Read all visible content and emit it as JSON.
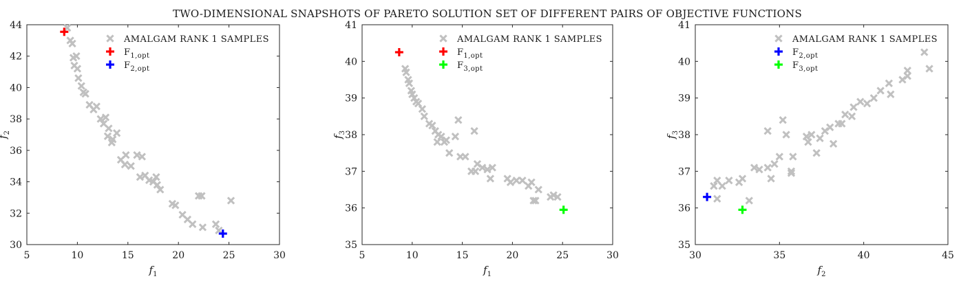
{
  "figure": {
    "title": "TWO-DIMENSIONAL SNAPSHOTS OF PARETO SOLUTION SET OF DIFFERENT PAIRS OF OBJECTIVE FUNCTIONS"
  },
  "colors": {
    "samples": "#c0c0c0",
    "f1_opt": "#ff0000",
    "f2_opt": "#0000ff",
    "f3_opt": "#00ff00",
    "axes": "#262626"
  },
  "chart_data": [
    {
      "type": "scatter",
      "xlabel": {
        "base": "f",
        "sub": "1"
      },
      "ylabel": {
        "base": "f",
        "sub": "2"
      },
      "xlim": [
        5,
        30
      ],
      "ylim": [
        30,
        44
      ],
      "xticks": [
        "5",
        "10",
        "15",
        "20",
        "25",
        "30"
      ],
      "yticks": [
        "30",
        "32",
        "34",
        "36",
        "38",
        "40",
        "42",
        "44"
      ],
      "legend_position": "top-right",
      "legend": [
        {
          "text": "AMALGAM RANK 1 SAMPLES",
          "sub": "",
          "marker": "x",
          "color": "#c0c0c0"
        },
        {
          "text": "F",
          "sub": "1,opt",
          "marker": "+",
          "color": "#ff0000"
        },
        {
          "text": "F",
          "sub": "2,opt",
          "marker": "+",
          "color": "#0000ff"
        }
      ],
      "series": [
        {
          "name": "AMALGAM RANK 1 SAMPLES",
          "marker": "x",
          "color": "#c0c0c0",
          "points": [
            [
              9.0,
              43.8
            ],
            [
              9.3,
              43.0
            ],
            [
              9.5,
              42.8
            ],
            [
              9.6,
              41.9
            ],
            [
              9.9,
              42.0
            ],
            [
              9.7,
              41.4
            ],
            [
              10.0,
              41.2
            ],
            [
              10.1,
              40.6
            ],
            [
              10.4,
              40.1
            ],
            [
              10.8,
              39.6
            ],
            [
              10.6,
              39.7
            ],
            [
              11.2,
              38.9
            ],
            [
              11.6,
              38.6
            ],
            [
              11.9,
              38.8
            ],
            [
              12.3,
              38.0
            ],
            [
              12.6,
              37.7
            ],
            [
              12.8,
              38.1
            ],
            [
              13.1,
              37.4
            ],
            [
              13.0,
              36.9
            ],
            [
              13.5,
              36.7
            ],
            [
              13.4,
              36.5
            ],
            [
              13.9,
              37.1
            ],
            [
              14.3,
              35.4
            ],
            [
              14.7,
              35.1
            ],
            [
              14.8,
              35.7
            ],
            [
              15.3,
              35.0
            ],
            [
              15.9,
              35.7
            ],
            [
              16.2,
              34.3
            ],
            [
              16.4,
              35.6
            ],
            [
              16.7,
              34.4
            ],
            [
              17.1,
              34.1
            ],
            [
              17.5,
              34.0
            ],
            [
              17.9,
              33.8
            ],
            [
              17.8,
              34.3
            ],
            [
              18.2,
              33.5
            ],
            [
              19.4,
              32.6
            ],
            [
              19.7,
              32.5
            ],
            [
              20.4,
              31.9
            ],
            [
              20.9,
              31.6
            ],
            [
              21.4,
              31.3
            ],
            [
              22.0,
              33.1
            ],
            [
              22.3,
              33.1
            ],
            [
              22.4,
              31.1
            ],
            [
              23.7,
              31.3
            ],
            [
              24.0,
              30.9
            ],
            [
              25.2,
              32.8
            ]
          ]
        },
        {
          "name": "F1,opt",
          "marker": "+",
          "color": "#ff0000",
          "points": [
            [
              8.7,
              43.55
            ]
          ]
        },
        {
          "name": "F2,opt",
          "marker": "+",
          "color": "#0000ff",
          "points": [
            [
              24.4,
              30.7
            ]
          ]
        }
      ]
    },
    {
      "type": "scatter",
      "xlabel": {
        "base": "f",
        "sub": "1"
      },
      "ylabel": {
        "base": "f",
        "sub": "3"
      },
      "xlim": [
        5,
        30
      ],
      "ylim": [
        35,
        41
      ],
      "xticks": [
        "5",
        "10",
        "15",
        "20",
        "25",
        "30"
      ],
      "yticks": [
        "35",
        "36",
        "37",
        "38",
        "39",
        "40",
        "41"
      ],
      "legend_position": "top-right",
      "legend": [
        {
          "text": "AMALGAM RANK 1 SAMPLES",
          "sub": "",
          "marker": "x",
          "color": "#c0c0c0"
        },
        {
          "text": "F",
          "sub": "1,opt",
          "marker": "+",
          "color": "#ff0000"
        },
        {
          "text": "F",
          "sub": "3,opt",
          "marker": "+",
          "color": "#00ff00"
        }
      ],
      "series": [
        {
          "name": "AMALGAM RANK 1 SAMPLES",
          "marker": "x",
          "color": "#c0c0c0",
          "points": [
            [
              9.3,
              39.8
            ],
            [
              9.4,
              39.7
            ],
            [
              9.6,
              39.5
            ],
            [
              9.7,
              39.4
            ],
            [
              9.9,
              39.2
            ],
            [
              10.0,
              39.1
            ],
            [
              10.2,
              39.0
            ],
            [
              10.4,
              38.9
            ],
            [
              10.6,
              38.85
            ],
            [
              11.0,
              38.7
            ],
            [
              11.2,
              38.5
            ],
            [
              11.7,
              38.3
            ],
            [
              12.0,
              38.25
            ],
            [
              12.3,
              38.1
            ],
            [
              12.6,
              38.0
            ],
            [
              12.5,
              37.8
            ],
            [
              12.9,
              37.95
            ],
            [
              13.2,
              37.8
            ],
            [
              13.4,
              37.85
            ],
            [
              13.7,
              37.5
            ],
            [
              14.3,
              37.95
            ],
            [
              14.6,
              38.4
            ],
            [
              14.8,
              37.4
            ],
            [
              15.3,
              37.4
            ],
            [
              15.9,
              37.0
            ],
            [
              16.2,
              38.1
            ],
            [
              16.3,
              37.0
            ],
            [
              16.5,
              37.2
            ],
            [
              17.0,
              37.1
            ],
            [
              17.5,
              37.05
            ],
            [
              17.8,
              36.8
            ],
            [
              18.0,
              37.1
            ],
            [
              19.5,
              36.8
            ],
            [
              19.8,
              36.7
            ],
            [
              20.4,
              36.75
            ],
            [
              21.0,
              36.75
            ],
            [
              21.6,
              36.6
            ],
            [
              21.9,
              36.7
            ],
            [
              22.1,
              36.2
            ],
            [
              22.3,
              36.2
            ],
            [
              22.6,
              36.5
            ],
            [
              23.8,
              36.3
            ],
            [
              24.1,
              36.35
            ],
            [
              24.5,
              36.3
            ]
          ]
        },
        {
          "name": "F1,opt",
          "marker": "+",
          "color": "#ff0000",
          "points": [
            [
              8.7,
              40.25
            ]
          ]
        },
        {
          "name": "F3,opt",
          "marker": "+",
          "color": "#00ff00",
          "points": [
            [
              25.1,
              35.95
            ]
          ]
        }
      ]
    },
    {
      "type": "scatter",
      "xlabel": {
        "base": "f",
        "sub": "2"
      },
      "ylabel": {
        "base": "f",
        "sub": "3"
      },
      "xlim": [
        30,
        45
      ],
      "ylim": [
        35,
        41
      ],
      "xticks": [
        "30",
        "35",
        "40",
        "45"
      ],
      "yticks": [
        "35",
        "36",
        "37",
        "38",
        "39",
        "40",
        "41"
      ],
      "legend_position": "top-right",
      "legend": [
        {
          "text": "AMALGAM RANK 1 SAMPLES",
          "sub": "",
          "marker": "x",
          "color": "#c0c0c0"
        },
        {
          "text": "F",
          "sub": "2,opt",
          "marker": "+",
          "color": "#0000ff"
        },
        {
          "text": "F",
          "sub": "3,opt",
          "marker": "+",
          "color": "#00ff00"
        }
      ],
      "series": [
        {
          "name": "AMALGAM RANK 1 SAMPLES",
          "marker": "x",
          "color": "#c0c0c0",
          "points": [
            [
              31.1,
              36.6
            ],
            [
              31.3,
              36.75
            ],
            [
              31.3,
              36.25
            ],
            [
              31.6,
              36.6
            ],
            [
              32.0,
              36.75
            ],
            [
              32.6,
              36.7
            ],
            [
              32.8,
              36.8
            ],
            [
              33.2,
              36.2
            ],
            [
              33.5,
              37.1
            ],
            [
              33.8,
              37.05
            ],
            [
              34.3,
              37.1
            ],
            [
              34.3,
              38.1
            ],
            [
              34.5,
              36.8
            ],
            [
              34.7,
              37.2
            ],
            [
              35.0,
              37.4
            ],
            [
              35.2,
              38.4
            ],
            [
              35.4,
              38.0
            ],
            [
              35.7,
              36.95
            ],
            [
              35.7,
              37.0
            ],
            [
              35.8,
              37.4
            ],
            [
              36.6,
              37.95
            ],
            [
              36.7,
              37.8
            ],
            [
              36.9,
              38.0
            ],
            [
              37.2,
              37.5
            ],
            [
              37.4,
              37.9
            ],
            [
              37.7,
              38.1
            ],
            [
              38.0,
              38.2
            ],
            [
              38.2,
              37.75
            ],
            [
              38.5,
              38.3
            ],
            [
              38.7,
              38.3
            ],
            [
              38.9,
              38.55
            ],
            [
              39.3,
              38.5
            ],
            [
              39.4,
              38.75
            ],
            [
              39.8,
              38.9
            ],
            [
              40.2,
              38.85
            ],
            [
              40.6,
              39.0
            ],
            [
              41.0,
              39.2
            ],
            [
              41.5,
              39.4
            ],
            [
              41.6,
              39.1
            ],
            [
              42.3,
              39.5
            ],
            [
              42.6,
              39.6
            ],
            [
              42.6,
              39.75
            ],
            [
              43.6,
              40.25
            ],
            [
              43.9,
              39.8
            ]
          ]
        },
        {
          "name": "F2,opt",
          "marker": "+",
          "color": "#0000ff",
          "points": [
            [
              30.7,
              36.3
            ]
          ]
        },
        {
          "name": "F3,opt",
          "marker": "+",
          "color": "#00ff00",
          "points": [
            [
              32.8,
              35.95
            ]
          ]
        }
      ]
    }
  ]
}
